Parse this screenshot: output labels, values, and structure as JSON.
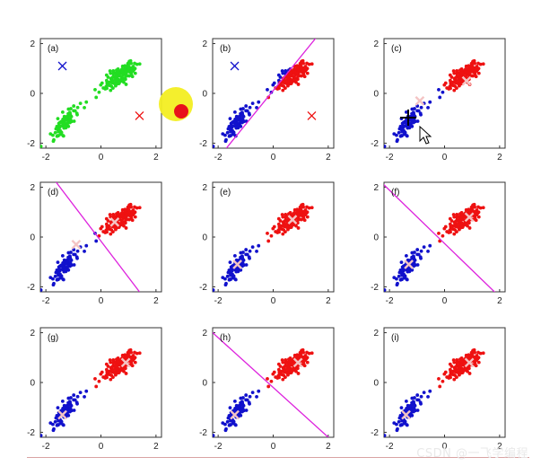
{
  "colors": {
    "green": "#22dd22",
    "red": "#ee1111",
    "blue": "#1111cc",
    "divider": "#dd22dd",
    "center_cross": "#f4c4c4"
  },
  "watermark": "CSDN @一飞学编程",
  "chart_data": [
    {
      "type": "scatter",
      "label": "(a)",
      "xlim": [
        -2.2,
        2.2
      ],
      "ylim": [
        -2.2,
        2.2
      ],
      "xticks": [
        -2,
        0,
        2
      ],
      "yticks": [
        -2,
        0,
        2
      ],
      "x_tick_labels": [
        "-2",
        "0",
        "2"
      ],
      "y_tick_labels": [
        "-2",
        "0",
        "2"
      ],
      "assignment": "unassigned",
      "centroids": [
        {
          "cluster": "blue",
          "x": -1.4,
          "y": 1.1
        },
        {
          "cluster": "red",
          "x": 1.4,
          "y": -0.9
        }
      ],
      "boundary": null
    },
    {
      "type": "scatter",
      "label": "(b)",
      "xlim": [
        -2.2,
        2.2
      ],
      "ylim": [
        -2.2,
        2.2
      ],
      "xticks": [
        -2,
        0,
        2
      ],
      "yticks": [
        -2,
        0,
        2
      ],
      "x_tick_labels": [
        "-2",
        "0",
        "2"
      ],
      "y_tick_labels": [
        "-2",
        "0",
        "2"
      ],
      "assignment": "by_line",
      "centroids": [
        {
          "cluster": "blue",
          "x": -1.4,
          "y": 1.1
        },
        {
          "cluster": "red",
          "x": 1.4,
          "y": -0.9
        }
      ],
      "boundary": [
        [
          -1.7,
          -2.2
        ],
        [
          1.9,
          2.7
        ]
      ]
    },
    {
      "type": "scatter",
      "label": "(c)",
      "xlim": [
        -2.2,
        2.2
      ],
      "ylim": [
        -2.2,
        2.2
      ],
      "xticks": [
        -2,
        0,
        2
      ],
      "yticks": [
        -2,
        0,
        2
      ],
      "x_tick_labels": [
        "-2",
        "0",
        "2"
      ],
      "y_tick_labels": [
        "-2",
        "0",
        "2"
      ],
      "assignment": "by_line",
      "centroids": [
        {
          "cluster": "blue",
          "x": -0.9,
          "y": -0.3
        },
        {
          "cluster": "red",
          "x": 0.8,
          "y": 0.5
        }
      ],
      "boundary": null
    },
    {
      "type": "scatter",
      "label": "(d)",
      "xlim": [
        -2.2,
        2.2
      ],
      "ylim": [
        -2.2,
        2.2
      ],
      "xticks": [
        -2,
        0,
        2
      ],
      "yticks": [
        -2,
        0,
        2
      ],
      "x_tick_labels": [
        "-2",
        "0",
        "2"
      ],
      "y_tick_labels": [
        "-2",
        "0",
        "2"
      ],
      "assignment": "by_line",
      "centroids": [
        {
          "cluster": "blue",
          "x": -0.9,
          "y": -0.3
        },
        {
          "cluster": "red",
          "x": 0.5,
          "y": 0.6
        }
      ],
      "boundary": [
        [
          -1.9,
          2.6
        ],
        [
          1.4,
          -2.2
        ]
      ]
    },
    {
      "type": "scatter",
      "label": "(e)",
      "xlim": [
        -2.2,
        2.2
      ],
      "ylim": [
        -2.2,
        2.2
      ],
      "xticks": [
        -2,
        0,
        2
      ],
      "yticks": [
        -2,
        0,
        2
      ],
      "x_tick_labels": [
        "-2",
        "0",
        "2"
      ],
      "y_tick_labels": [
        "-2",
        "0",
        "2"
      ],
      "assignment": "by_line",
      "centroids": [
        {
          "cluster": "blue",
          "x": -1.3,
          "y": -1.1
        },
        {
          "cluster": "red",
          "x": 0.7,
          "y": 0.7
        }
      ],
      "boundary": null
    },
    {
      "type": "scatter",
      "label": "(f)",
      "xlim": [
        -2.2,
        2.2
      ],
      "ylim": [
        -2.2,
        2.2
      ],
      "xticks": [
        -2,
        0,
        2
      ],
      "yticks": [
        -2,
        0,
        2
      ],
      "x_tick_labels": [
        "-2",
        "0",
        "2"
      ],
      "y_tick_labels": [
        "-2",
        "0",
        "2"
      ],
      "assignment": "by_line",
      "centroids": [
        {
          "cluster": "blue",
          "x": -1.3,
          "y": -1.1
        },
        {
          "cluster": "red",
          "x": 0.9,
          "y": 0.8
        }
      ],
      "boundary": [
        [
          -2.3,
          2.2
        ],
        [
          2.0,
          -2.4
        ]
      ]
    },
    {
      "type": "scatter",
      "label": "(g)",
      "xlim": [
        -2.2,
        2.2
      ],
      "ylim": [
        -2.2,
        2.2
      ],
      "xticks": [
        -2,
        0,
        2
      ],
      "yticks": [
        -2,
        0,
        2
      ],
      "x_tick_labels": [
        "-2",
        "0",
        "2"
      ],
      "y_tick_labels": [
        "-2",
        "0",
        "2"
      ],
      "assignment": "by_line",
      "centroids": [
        {
          "cluster": "blue",
          "x": -1.4,
          "y": -1.3
        },
        {
          "cluster": "red",
          "x": 0.9,
          "y": 0.8
        }
      ],
      "boundary": null
    },
    {
      "type": "scatter",
      "label": "(h)",
      "xlim": [
        -2.2,
        2.2
      ],
      "ylim": [
        -2.2,
        2.2
      ],
      "xticks": [
        -2,
        0,
        2
      ],
      "yticks": [
        -2,
        0,
        2
      ],
      "x_tick_labels": [
        "-2",
        "0",
        "2"
      ],
      "y_tick_labels": [
        "-2",
        "0",
        "2"
      ],
      "assignment": "by_line",
      "centroids": [
        {
          "cluster": "blue",
          "x": -1.4,
          "y": -1.3
        },
        {
          "cluster": "red",
          "x": 0.9,
          "y": 0.8
        }
      ],
      "boundary": [
        [
          -2.4,
          2.2
        ],
        [
          2.2,
          -2.4
        ]
      ]
    },
    {
      "type": "scatter",
      "label": "(i)",
      "xlim": [
        -2.2,
        2.2
      ],
      "ylim": [
        -2.2,
        2.2
      ],
      "xticks": [
        -2,
        0,
        2
      ],
      "yticks": [
        -2,
        0,
        2
      ],
      "x_tick_labels": [
        "-2",
        "0",
        "2"
      ],
      "y_tick_labels": [
        "-2",
        "0",
        "2"
      ],
      "assignment": "by_line",
      "centroids": [
        {
          "cluster": "blue",
          "x": -1.4,
          "y": -1.3
        },
        {
          "cluster": "red",
          "x": 0.9,
          "y": 0.8
        }
      ],
      "boundary": null
    }
  ]
}
